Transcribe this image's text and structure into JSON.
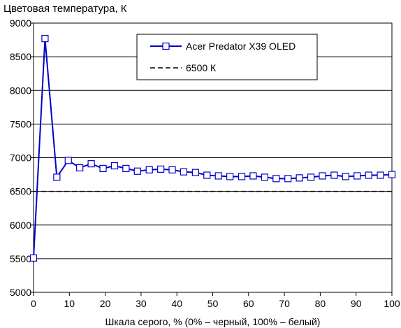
{
  "chart_data": {
    "type": "line",
    "title": "Цветовая температура, К",
    "xlabel": "Шкала серого, % (0% – черный, 100% – белый)",
    "ylabel": "",
    "xlim": [
      0,
      100
    ],
    "ylim": [
      5000,
      9000
    ],
    "x_ticks": [
      0,
      10,
      20,
      30,
      40,
      50,
      60,
      70,
      80,
      90,
      100
    ],
    "y_ticks": [
      5000,
      5500,
      6000,
      6500,
      7000,
      7500,
      8000,
      8500,
      9000
    ],
    "grid": "horizontal",
    "legend_position": "top-right",
    "series": [
      {
        "name": "Acer Predator X39 OLED",
        "color": "#0000cc",
        "marker": "square",
        "x": [
          0,
          3.2,
          6.5,
          9.7,
          12.9,
          16.1,
          19.4,
          22.6,
          25.8,
          29.0,
          32.3,
          35.5,
          38.7,
          41.9,
          45.2,
          48.4,
          51.6,
          54.8,
          58.1,
          61.3,
          64.5,
          67.7,
          71.0,
          74.2,
          77.4,
          80.6,
          83.9,
          87.1,
          90.3,
          93.5,
          96.8,
          100
        ],
        "values": [
          5510,
          8770,
          6710,
          6960,
          6850,
          6910,
          6840,
          6880,
          6840,
          6800,
          6820,
          6830,
          6820,
          6790,
          6780,
          6740,
          6730,
          6720,
          6720,
          6730,
          6710,
          6690,
          6690,
          6700,
          6710,
          6730,
          6740,
          6720,
          6730,
          6740,
          6740,
          6750
        ]
      },
      {
        "name": "6500 К",
        "color": "#000000",
        "style": "dashed",
        "x": [
          0,
          100
        ],
        "values": [
          6500,
          6500
        ]
      }
    ]
  }
}
